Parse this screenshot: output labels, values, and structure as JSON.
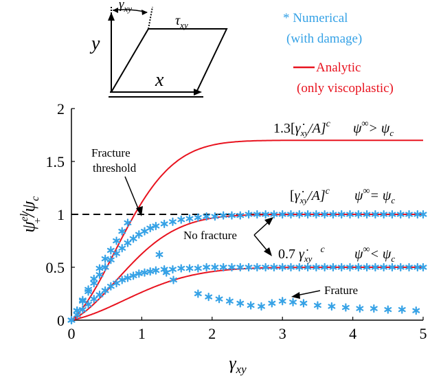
{
  "chart_data": {
    "type": "line",
    "xlabel": "γ",
    "xlabel_sub": "xy",
    "ylabel": "ψ",
    "ylabel_sup": "el",
    "ylabel_sub": "+",
    "ylabel_den": "/ψ",
    "ylabel_den_sub": "c",
    "xlim": [
      0,
      5
    ],
    "ylim": [
      0,
      2
    ],
    "x_ticks": [
      0,
      1,
      2,
      3,
      4,
      5
    ],
    "y_ticks": [
      0,
      0.5,
      1,
      1.5,
      2
    ],
    "x_tick_labels": [
      "0",
      "1",
      "2",
      "3",
      "4",
      "5"
    ],
    "y_tick_labels": [
      "0",
      "0.5",
      "1",
      "1.5",
      "2"
    ],
    "threshold": 1,
    "colors": {
      "analytic": "#e8121e",
      "numerical": "#36a2e6",
      "threshold": "#000000",
      "axis": "#000000"
    },
    "legend": {
      "numerical": "* Numerical",
      "numerical_2": "(with damage)",
      "analytic": "Analytic",
      "analytic_2": "(only viscoplastic)",
      "placement": "top-right"
    },
    "analytic_curves": [
      {
        "plateau": 1.7,
        "rate": 1.1
      },
      {
        "plateau": 1.0,
        "rate": 1.15
      },
      {
        "plateau": 0.5,
        "rate": 1.35
      }
    ],
    "numerical_series": [
      {
        "x": [
          0,
          0.08,
          0.16,
          0.24,
          0.32,
          0.4,
          0.48,
          0.56,
          0.64,
          0.72,
          0.8,
          0.88,
          0.96,
          1.04,
          1.12,
          1.2,
          1.32,
          1.44,
          1.56,
          1.68,
          1.8,
          1.92,
          2.04,
          2.16,
          2.28,
          2.4,
          2.52,
          2.64,
          2.76,
          2.88,
          3.0,
          3.12,
          3.24,
          3.36,
          3.48,
          3.6,
          3.72,
          3.84,
          3.96,
          4.08,
          4.2,
          4.32,
          4.44,
          4.56,
          4.68,
          4.8,
          4.92,
          5.0
        ],
        "y": [
          0,
          0.09,
          0.18,
          0.27,
          0.35,
          0.43,
          0.5,
          0.57,
          0.63,
          0.68,
          0.73,
          0.77,
          0.81,
          0.84,
          0.87,
          0.89,
          0.91,
          0.93,
          0.95,
          0.96,
          0.97,
          0.98,
          0.98,
          0.99,
          0.99,
          0.99,
          1.0,
          1.0,
          1.0,
          1.0,
          1.0,
          1.0,
          1.0,
          1.0,
          1.0,
          1.0,
          1.0,
          1.0,
          1.0,
          1.0,
          1.0,
          1.0,
          1.0,
          1.0,
          1.0,
          1.0,
          1.0,
          1.0
        ]
      },
      {
        "x": [
          0,
          0.08,
          0.16,
          0.24,
          0.32,
          0.4,
          0.48,
          0.56,
          0.64,
          0.72,
          0.8,
          0.88,
          0.96,
          1.04,
          1.12,
          1.2,
          1.32,
          1.44,
          1.56,
          1.68,
          1.8,
          1.92,
          2.04,
          2.16,
          2.28,
          2.4,
          2.52,
          2.64,
          2.76,
          2.88,
          3.0,
          3.12,
          3.24,
          3.36,
          3.48,
          3.6,
          3.72,
          3.84,
          3.96,
          4.08,
          4.2,
          4.32,
          4.44,
          4.56,
          4.68,
          4.8,
          4.92,
          5.0
        ],
        "y": [
          0,
          0.05,
          0.1,
          0.15,
          0.2,
          0.24,
          0.28,
          0.32,
          0.35,
          0.38,
          0.4,
          0.42,
          0.44,
          0.45,
          0.46,
          0.47,
          0.48,
          0.48,
          0.49,
          0.49,
          0.49,
          0.5,
          0.5,
          0.5,
          0.5,
          0.5,
          0.5,
          0.5,
          0.5,
          0.5,
          0.5,
          0.5,
          0.5,
          0.5,
          0.5,
          0.5,
          0.5,
          0.5,
          0.5,
          0.5,
          0.5,
          0.5,
          0.5,
          0.5,
          0.5,
          0.5,
          0.5,
          0.5
        ]
      },
      {
        "x": [
          0,
          0.08,
          0.16,
          0.24,
          0.32,
          0.4,
          0.48,
          0.56,
          0.64,
          0.72,
          0.8,
          1.25,
          1.35,
          1.45,
          1.8,
          1.95,
          2.1,
          2.25,
          2.4,
          2.55,
          2.7,
          2.85,
          3.0,
          3.15,
          3.3,
          3.5,
          3.7,
          3.9,
          4.1,
          4.3,
          4.5,
          4.7,
          4.9
        ],
        "y": [
          0,
          0.09,
          0.19,
          0.29,
          0.39,
          0.49,
          0.58,
          0.66,
          0.75,
          0.84,
          0.92,
          0.62,
          0.45,
          0.38,
          0.25,
          0.22,
          0.2,
          0.18,
          0.16,
          0.14,
          0.13,
          0.16,
          0.18,
          0.17,
          0.16,
          0.14,
          0.13,
          0.12,
          0.11,
          0.11,
          0.1,
          0.1,
          0.09
        ]
      }
    ],
    "annotations": {
      "fracture_threshold_1": "Fracture",
      "fracture_threshold_2": "threshold",
      "no_fracture": "No fracture",
      "fracture": "Frature",
      "c1_coef": "1.3[",
      "c1_expr": "γ̇",
      "c1_sub": "xy",
      "c1_rest": "/A]",
      "c1_sup": "c",
      "c2_coef": "[",
      "c2_expr": "γ̇",
      "c2_sub": "xy",
      "c2_rest": "/A]",
      "c2_sup": "c",
      "c3_coef": "0.7 ",
      "c3_expr": "γ̇",
      "c3_sub": "xy",
      "c3_sup": "c",
      "psi_1_lhs": "ψ",
      "psi_1_sup": "∞",
      "psi_1_op": "> ψ",
      "psi_1_sub": "c",
      "psi_2_lhs": "ψ",
      "psi_2_sup": "∞",
      "psi_2_op": "= ψ",
      "psi_2_sub": "c",
      "psi_3_lhs": "ψ",
      "psi_3_sup": "∞",
      "psi_3_op": "< ψ",
      "psi_3_sub": "c"
    },
    "inset": {
      "gamma": "γ",
      "gamma_sub": "xy",
      "tau": "τ",
      "tau_sub": "xy",
      "x_axis": "x",
      "y_axis": "y"
    }
  }
}
